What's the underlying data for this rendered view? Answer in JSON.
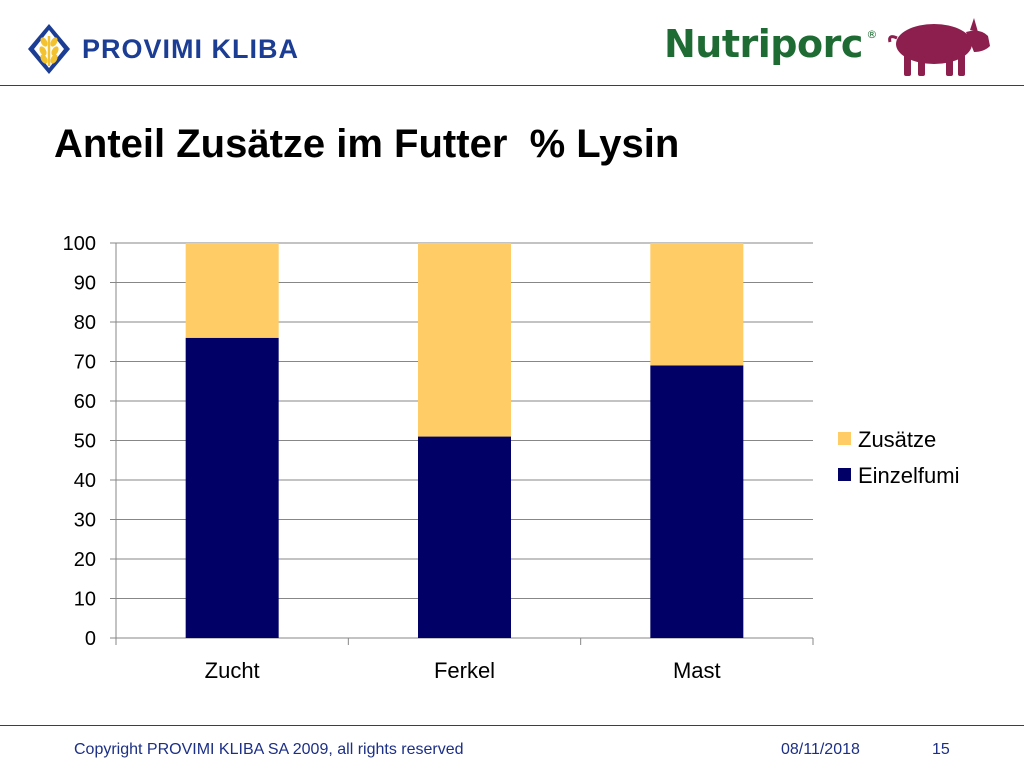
{
  "header": {
    "left_logo_text": "PROVIMI KLIBA",
    "right_logo_text": "Nutriporc",
    "right_logo_mark": "®",
    "left_logo_icon": "wheat-icon",
    "right_logo_icon": "pig-icon"
  },
  "slide": {
    "title": "Anteil Zusätze im Futter  % Lysin"
  },
  "chart_data": {
    "type": "bar",
    "stacked": true,
    "categories": [
      "Zucht",
      "Ferkel",
      "Mast"
    ],
    "series": [
      {
        "name": "Einzelfumi",
        "values": [
          76,
          51,
          69
        ],
        "color": "#000066"
      },
      {
        "name": "Zusätze",
        "values": [
          24,
          49,
          31
        ],
        "color": "#ffcc66"
      }
    ],
    "ylim": [
      0,
      100
    ],
    "yticks": [
      0,
      10,
      20,
      30,
      40,
      50,
      60,
      70,
      80,
      90,
      100
    ],
    "grid": true,
    "legend": "right",
    "legend_order": [
      "Zusätze",
      "Einzelfumi"
    ]
  },
  "footer": {
    "copyright": "Copyright PROVIMI KLIBA SA 2009, all rights reserved",
    "date": "08/11/2018",
    "page": "15"
  },
  "colors": {
    "brand_blue": "#1c3d94",
    "nutriporc_green": "#1e6b34",
    "pig_color": "#8c1f4d"
  }
}
